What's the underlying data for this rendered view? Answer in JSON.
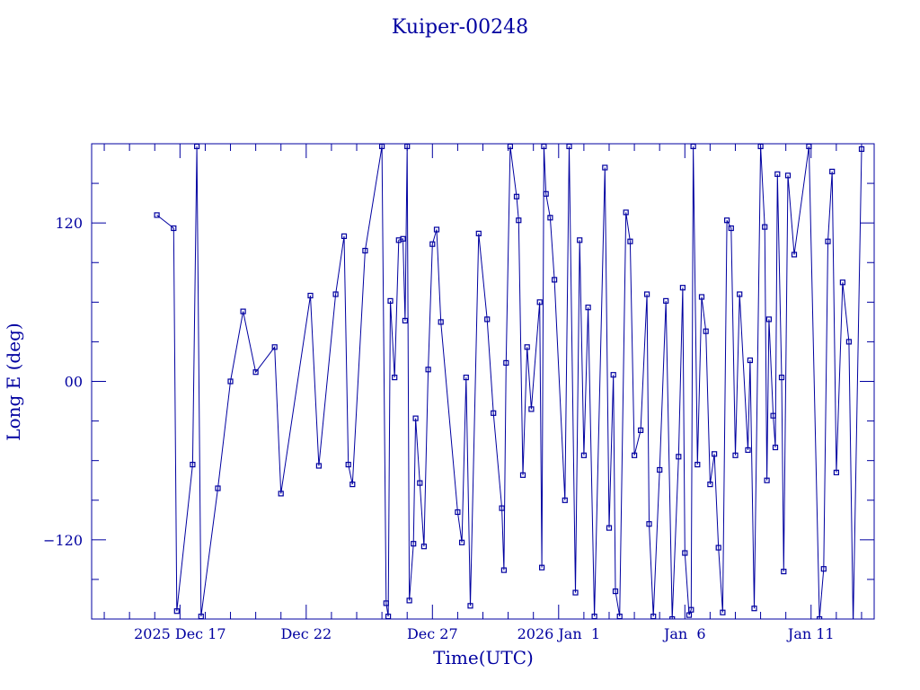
{
  "colors": {
    "ink": "#0000a0",
    "background": "#ffffff"
  },
  "chart_data": {
    "type": "line",
    "title": "Kuiper-00248",
    "xlabel": "Time(UTC)",
    "ylabel": "Long E (deg)",
    "x_unit": "date (UTC)",
    "xlim": [
      "2025-12-13T12:00",
      "2026-01-13T12:00"
    ],
    "ylim": [
      -180,
      180
    ],
    "x_ticks": [
      {
        "x": "2025-12-17",
        "label": "2025 Dec 17"
      },
      {
        "x": "2025-12-22",
        "label": "Dec 22"
      },
      {
        "x": "2025-12-27",
        "label": "Dec 27"
      },
      {
        "x": "2026-01-01",
        "label": "2026 Jan  1"
      },
      {
        "x": "2026-01-06",
        "label": "Jan  6"
      },
      {
        "x": "2026-01-11",
        "label": "Jan 11"
      }
    ],
    "y_ticks": [
      {
        "y": -120,
        "label": "−120"
      },
      {
        "y": 0,
        "label": "00"
      },
      {
        "y": 120,
        "label": "120"
      }
    ],
    "grid": false,
    "marker": "open-square",
    "series": [
      {
        "points": [
          [
            "2025-12-16T02:00",
            126
          ],
          [
            "2025-12-16T18:00",
            116
          ],
          [
            "2025-12-16T21:00",
            -174
          ],
          [
            "2025-12-17T12:00",
            -63
          ],
          [
            "2025-12-17T16:00",
            178
          ],
          [
            "2025-12-17T20:00",
            -178
          ],
          [
            "2025-12-18T12:00",
            -81
          ],
          [
            "2025-12-19T00:00",
            0
          ],
          [
            "2025-12-19T12:00",
            53
          ],
          [
            "2025-12-20T00:00",
            7
          ],
          [
            "2025-12-20T18:00",
            26
          ],
          [
            "2025-12-21T00:00",
            -85
          ],
          [
            "2025-12-22T04:00",
            65
          ],
          [
            "2025-12-22T12:00",
            -64
          ],
          [
            "2025-12-23T04:00",
            66
          ],
          [
            "2025-12-23T12:00",
            110
          ],
          [
            "2025-12-23T16:00",
            -63
          ],
          [
            "2025-12-23T20:00",
            -78
          ],
          [
            "2025-12-24T08:00",
            99
          ],
          [
            "2025-12-25T00:00",
            178
          ],
          [
            "2025-12-25T04:00",
            -168
          ],
          [
            "2025-12-25T06:00",
            -178
          ],
          [
            "2025-12-25T08:00",
            61
          ],
          [
            "2025-12-25T12:00",
            3
          ],
          [
            "2025-12-25T16:00",
            107
          ],
          [
            "2025-12-25T20:00",
            108
          ],
          [
            "2025-12-25T22:00",
            46
          ],
          [
            "2025-12-26T00:00",
            178
          ],
          [
            "2025-12-26T02:00",
            -166
          ],
          [
            "2025-12-26T06:00",
            -123
          ],
          [
            "2025-12-26T08:00",
            -28
          ],
          [
            "2025-12-26T12:00",
            -77
          ],
          [
            "2025-12-26T16:00",
            -125
          ],
          [
            "2025-12-26T20:00",
            9
          ],
          [
            "2025-12-27T00:00",
            104
          ],
          [
            "2025-12-27T04:00",
            115
          ],
          [
            "2025-12-27T08:00",
            45
          ],
          [
            "2025-12-28T00:00",
            -99
          ],
          [
            "2025-12-28T04:00",
            -122
          ],
          [
            "2025-12-28T08:00",
            3
          ],
          [
            "2025-12-28T12:00",
            -170
          ],
          [
            "2025-12-28T20:00",
            112
          ],
          [
            "2025-12-29T04:00",
            47
          ],
          [
            "2025-12-29T10:00",
            -24
          ],
          [
            "2025-12-29T18:00",
            -96
          ],
          [
            "2025-12-29T20:00",
            -143
          ],
          [
            "2025-12-29T22:00",
            14
          ],
          [
            "2025-12-30T02:00",
            178
          ],
          [
            "2025-12-30T08:00",
            140
          ],
          [
            "2025-12-30T10:00",
            122
          ],
          [
            "2025-12-30T14:00",
            -71
          ],
          [
            "2025-12-30T18:00",
            26
          ],
          [
            "2025-12-30T22:00",
            -21
          ],
          [
            "2025-12-31T06:00",
            60
          ],
          [
            "2025-12-31T08:00",
            -141
          ],
          [
            "2025-12-31T10:00",
            178
          ],
          [
            "2025-12-31T12:00",
            142
          ],
          [
            "2025-12-31T16:00",
            124
          ],
          [
            "2025-12-31T20:00",
            77
          ],
          [
            "2026-01-01T06:00",
            -90
          ],
          [
            "2026-01-01T10:00",
            178
          ],
          [
            "2026-01-01T16:00",
            -160
          ],
          [
            "2026-01-01T20:00",
            107
          ],
          [
            "2026-01-02T00:00",
            -56
          ],
          [
            "2026-01-02T04:00",
            56
          ],
          [
            "2026-01-02T10:00",
            -178
          ],
          [
            "2026-01-02T20:00",
            162
          ],
          [
            "2026-01-03T00:00",
            -111
          ],
          [
            "2026-01-03T04:00",
            5
          ],
          [
            "2026-01-03T06:00",
            -159
          ],
          [
            "2026-01-03T10:00",
            -178
          ],
          [
            "2026-01-03T16:00",
            128
          ],
          [
            "2026-01-03T20:00",
            106
          ],
          [
            "2026-01-04T00:00",
            -56
          ],
          [
            "2026-01-04T06:00",
            -37
          ],
          [
            "2026-01-04T12:00",
            66
          ],
          [
            "2026-01-04T14:00",
            -108
          ],
          [
            "2026-01-04T18:00",
            -178
          ],
          [
            "2026-01-05T00:00",
            -67
          ],
          [
            "2026-01-05T06:00",
            61
          ],
          [
            "2026-01-05T12:00",
            -180
          ],
          [
            "2026-01-05T18:00",
            -57
          ],
          [
            "2026-01-05T22:00",
            71
          ],
          [
            "2026-01-06T00:00",
            -130
          ],
          [
            "2026-01-06T04:00",
            -177
          ],
          [
            "2026-01-06T06:00",
            -173
          ],
          [
            "2026-01-06T08:00",
            178
          ],
          [
            "2026-01-06T12:00",
            -63
          ],
          [
            "2026-01-06T16:00",
            64
          ],
          [
            "2026-01-06T20:00",
            38
          ],
          [
            "2026-01-07T00:00",
            -78
          ],
          [
            "2026-01-07T04:00",
            -55
          ],
          [
            "2026-01-07T08:00",
            -126
          ],
          [
            "2026-01-07T12:00",
            -175
          ],
          [
            "2026-01-07T16:00",
            122
          ],
          [
            "2026-01-07T20:00",
            116
          ],
          [
            "2026-01-08T00:00",
            -56
          ],
          [
            "2026-01-08T04:00",
            66
          ],
          [
            "2026-01-08T12:00",
            -52
          ],
          [
            "2026-01-08T14:00",
            16
          ],
          [
            "2026-01-08T18:00",
            -172
          ],
          [
            "2026-01-09T00:00",
            178
          ],
          [
            "2026-01-09T04:00",
            117
          ],
          [
            "2026-01-09T06:00",
            -75
          ],
          [
            "2026-01-09T08:00",
            47
          ],
          [
            "2026-01-09T12:00",
            -26
          ],
          [
            "2026-01-09T14:00",
            -50
          ],
          [
            "2026-01-09T16:00",
            157
          ],
          [
            "2026-01-09T20:00",
            3
          ],
          [
            "2026-01-09T22:00",
            -144
          ],
          [
            "2026-01-10T02:00",
            156
          ],
          [
            "2026-01-10T08:00",
            96
          ],
          [
            "2026-01-10T22:00",
            178
          ],
          [
            "2026-01-11T08:00",
            -180
          ],
          [
            "2026-01-11T12:00",
            -142
          ],
          [
            "2026-01-11T16:00",
            106
          ],
          [
            "2026-01-11T20:00",
            159
          ],
          [
            "2026-01-12T00:00",
            -69
          ],
          [
            "2026-01-12T06:00",
            75
          ],
          [
            "2026-01-12T12:00",
            30
          ],
          [
            "2026-01-12T16:00",
            -184
          ],
          [
            "2026-01-13T00:00",
            176
          ]
        ]
      }
    ]
  }
}
